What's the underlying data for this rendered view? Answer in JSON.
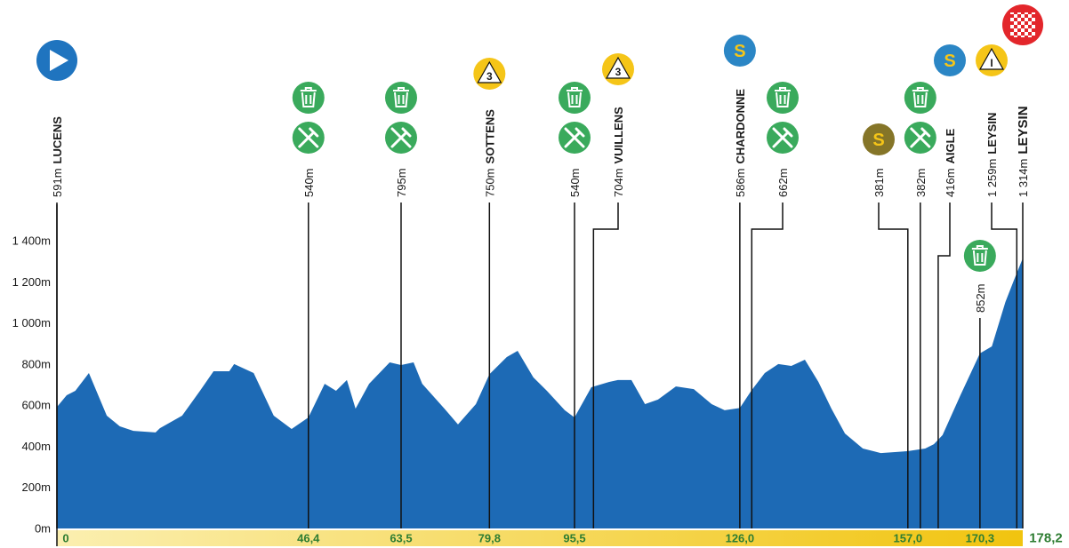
{
  "chart_data": {
    "type": "area",
    "color": "#1d6ab5",
    "x": [
      0,
      1.8,
      3.4,
      5.9,
      9.2,
      11.6,
      14.1,
      18.2,
      19.0,
      23.1,
      26.4,
      28.9,
      31.8,
      32.7,
      36.3,
      40.0,
      43.3,
      46.4,
      49.4,
      51.5,
      53.5,
      55.1,
      57.6,
      61.4,
      63.5,
      65.8,
      67.4,
      71.5,
      74.0,
      77.3,
      79.8,
      83.0,
      85.0,
      87.9,
      90.4,
      93.7,
      95.5,
      98.6,
      101.9,
      103.5,
      106.0,
      108.5,
      110.9,
      114.2,
      117.5,
      120.8,
      123.2,
      126.0,
      128.1,
      130.6,
      133.1,
      135.5,
      138.0,
      140.5,
      142.9,
      145.4,
      148.7,
      152.0,
      156.9,
      160.2,
      161.8,
      163.4,
      166.7,
      170.3,
      172.5,
      175.0,
      176.6,
      178.2
    ],
    "values": [
      591,
      648,
      670,
      756,
      549,
      497,
      475,
      467,
      488,
      549,
      670,
      765,
      765,
      800,
      756,
      549,
      484,
      540,
      704,
      670,
      722,
      583,
      704,
      808,
      795,
      808,
      704,
      583,
      506,
      605,
      750,
      834,
      864,
      735,
      670,
      575,
      540,
      687,
      713,
      722,
      722,
      605,
      627,
      691,
      678,
      605,
      575,
      586,
      670,
      756,
      800,
      791,
      821,
      713,
      583,
      462,
      389,
      367,
      376,
      389,
      410,
      454,
      648,
      852,
      886,
      1102,
      1210,
      1314
    ],
    "xlim": [
      0,
      178.2
    ],
    "ylim": [
      0,
      1400
    ],
    "yticks": [
      {
        "value": 0,
        "label": "0m"
      },
      {
        "value": 200,
        "label": "200m"
      },
      {
        "value": 400,
        "label": "400m"
      },
      {
        "value": 600,
        "label": "600m"
      },
      {
        "value": 800,
        "label": "800m"
      },
      {
        "value": 1000,
        "label": "1 000m"
      },
      {
        "value": 1200,
        "label": "1 200m"
      },
      {
        "value": 1400,
        "label": "1 400m"
      }
    ],
    "xticks": [
      {
        "value": 0,
        "label": "0"
      },
      {
        "value": 46.4,
        "label": "46,4"
      },
      {
        "value": 63.5,
        "label": "63,5"
      },
      {
        "value": 79.8,
        "label": "79,8"
      },
      {
        "value": 95.5,
        "label": "95,5"
      },
      {
        "value": 126.0,
        "label": "126,0"
      },
      {
        "value": 157.0,
        "label": "157,0"
      },
      {
        "value": 170.3,
        "label": "170,3"
      },
      {
        "value": 178.2,
        "label": "178,2"
      }
    ],
    "markers": [
      {
        "km": 0,
        "elevation": "591m",
        "name": "LUCENS",
        "icons": [
          "start"
        ]
      },
      {
        "km": 46.4,
        "elevation": "540m",
        "icons": [
          "bin",
          "feed"
        ]
      },
      {
        "km": 63.5,
        "elevation": "795m",
        "icons": [
          "bin",
          "feed"
        ]
      },
      {
        "km": 79.8,
        "elevation": "750m",
        "name": "SOTTENS",
        "icons": [
          "kom"
        ],
        "badge": "3"
      },
      {
        "km": 95.5,
        "elevation": "540m",
        "icons": [
          "bin",
          "feed"
        ]
      },
      {
        "km": 99.0,
        "elevation": "704m",
        "name": "VUILLENS",
        "icons": [
          "kom"
        ],
        "badge": "3"
      },
      {
        "km": 126.0,
        "elevation": "586m",
        "name": "CHARDONNE",
        "icons": [
          "sprint"
        ],
        "badge": "S",
        "color": "#2b86c5"
      },
      {
        "km": 128.2,
        "elevation": "662m",
        "icons": [
          "bin",
          "feed"
        ]
      },
      {
        "km": 157.0,
        "elevation": "381m",
        "icons": [
          "sprint"
        ],
        "badge": "S",
        "color": "#857528"
      },
      {
        "km": 159.3,
        "elevation": "382m",
        "icons": [
          "bin",
          "feed"
        ]
      },
      {
        "km": 162.6,
        "elevation": "416m",
        "name": "AIGLE",
        "icons": [
          "sprint"
        ],
        "badge": "S",
        "color": "#2b86c5"
      },
      {
        "km": 170.3,
        "elevation": "852m",
        "icons": [
          "bin"
        ]
      },
      {
        "km": 177.1,
        "elevation": "1 259m",
        "name": "LEYSIN",
        "icons": [
          "kom"
        ],
        "badge": "I"
      },
      {
        "km": 178.2,
        "elevation": "1 314m",
        "name": "LEYSIN",
        "icons": [
          "finish"
        ]
      }
    ]
  }
}
